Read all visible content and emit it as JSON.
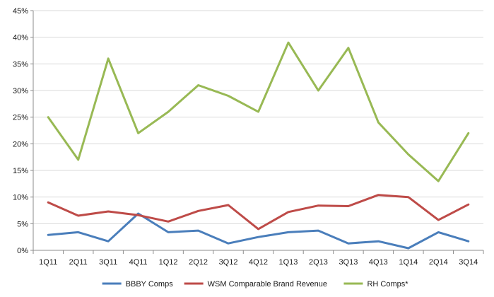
{
  "chart_data": {
    "type": "line",
    "categories": [
      "1Q11",
      "2Q11",
      "3Q11",
      "4Q11",
      "1Q12",
      "2Q12",
      "3Q12",
      "4Q12",
      "1Q13",
      "2Q13",
      "3Q13",
      "4Q13",
      "1Q14",
      "2Q14",
      "3Q14"
    ],
    "y_ticks": [
      "0%",
      "5%",
      "10%",
      "15%",
      "20%",
      "25%",
      "30%",
      "35%",
      "40%",
      "45%"
    ],
    "ylim": [
      0,
      45
    ],
    "y_step": 5,
    "grid": "horizontal",
    "legend_position": "bottom",
    "series": [
      {
        "name": "BBBY Comps",
        "color": "#4a7ebb",
        "values": [
          2.9,
          3.4,
          1.7,
          6.9,
          3.4,
          3.7,
          1.3,
          2.5,
          3.4,
          3.7,
          1.3,
          1.7,
          0.4,
          3.4,
          1.7
        ]
      },
      {
        "name": "WSM Comparable Brand Revenue",
        "color": "#be4b48",
        "values": [
          9.0,
          6.5,
          7.3,
          6.6,
          5.4,
          7.4,
          8.5,
          4.0,
          7.2,
          8.4,
          8.3,
          10.4,
          10.0,
          5.7,
          8.6
        ]
      },
      {
        "name": "RH Comps*",
        "color": "#98b954",
        "values": [
          25,
          17,
          36,
          22,
          26,
          31,
          29,
          26,
          39,
          30,
          38,
          24,
          18,
          13,
          22
        ]
      }
    ]
  }
}
